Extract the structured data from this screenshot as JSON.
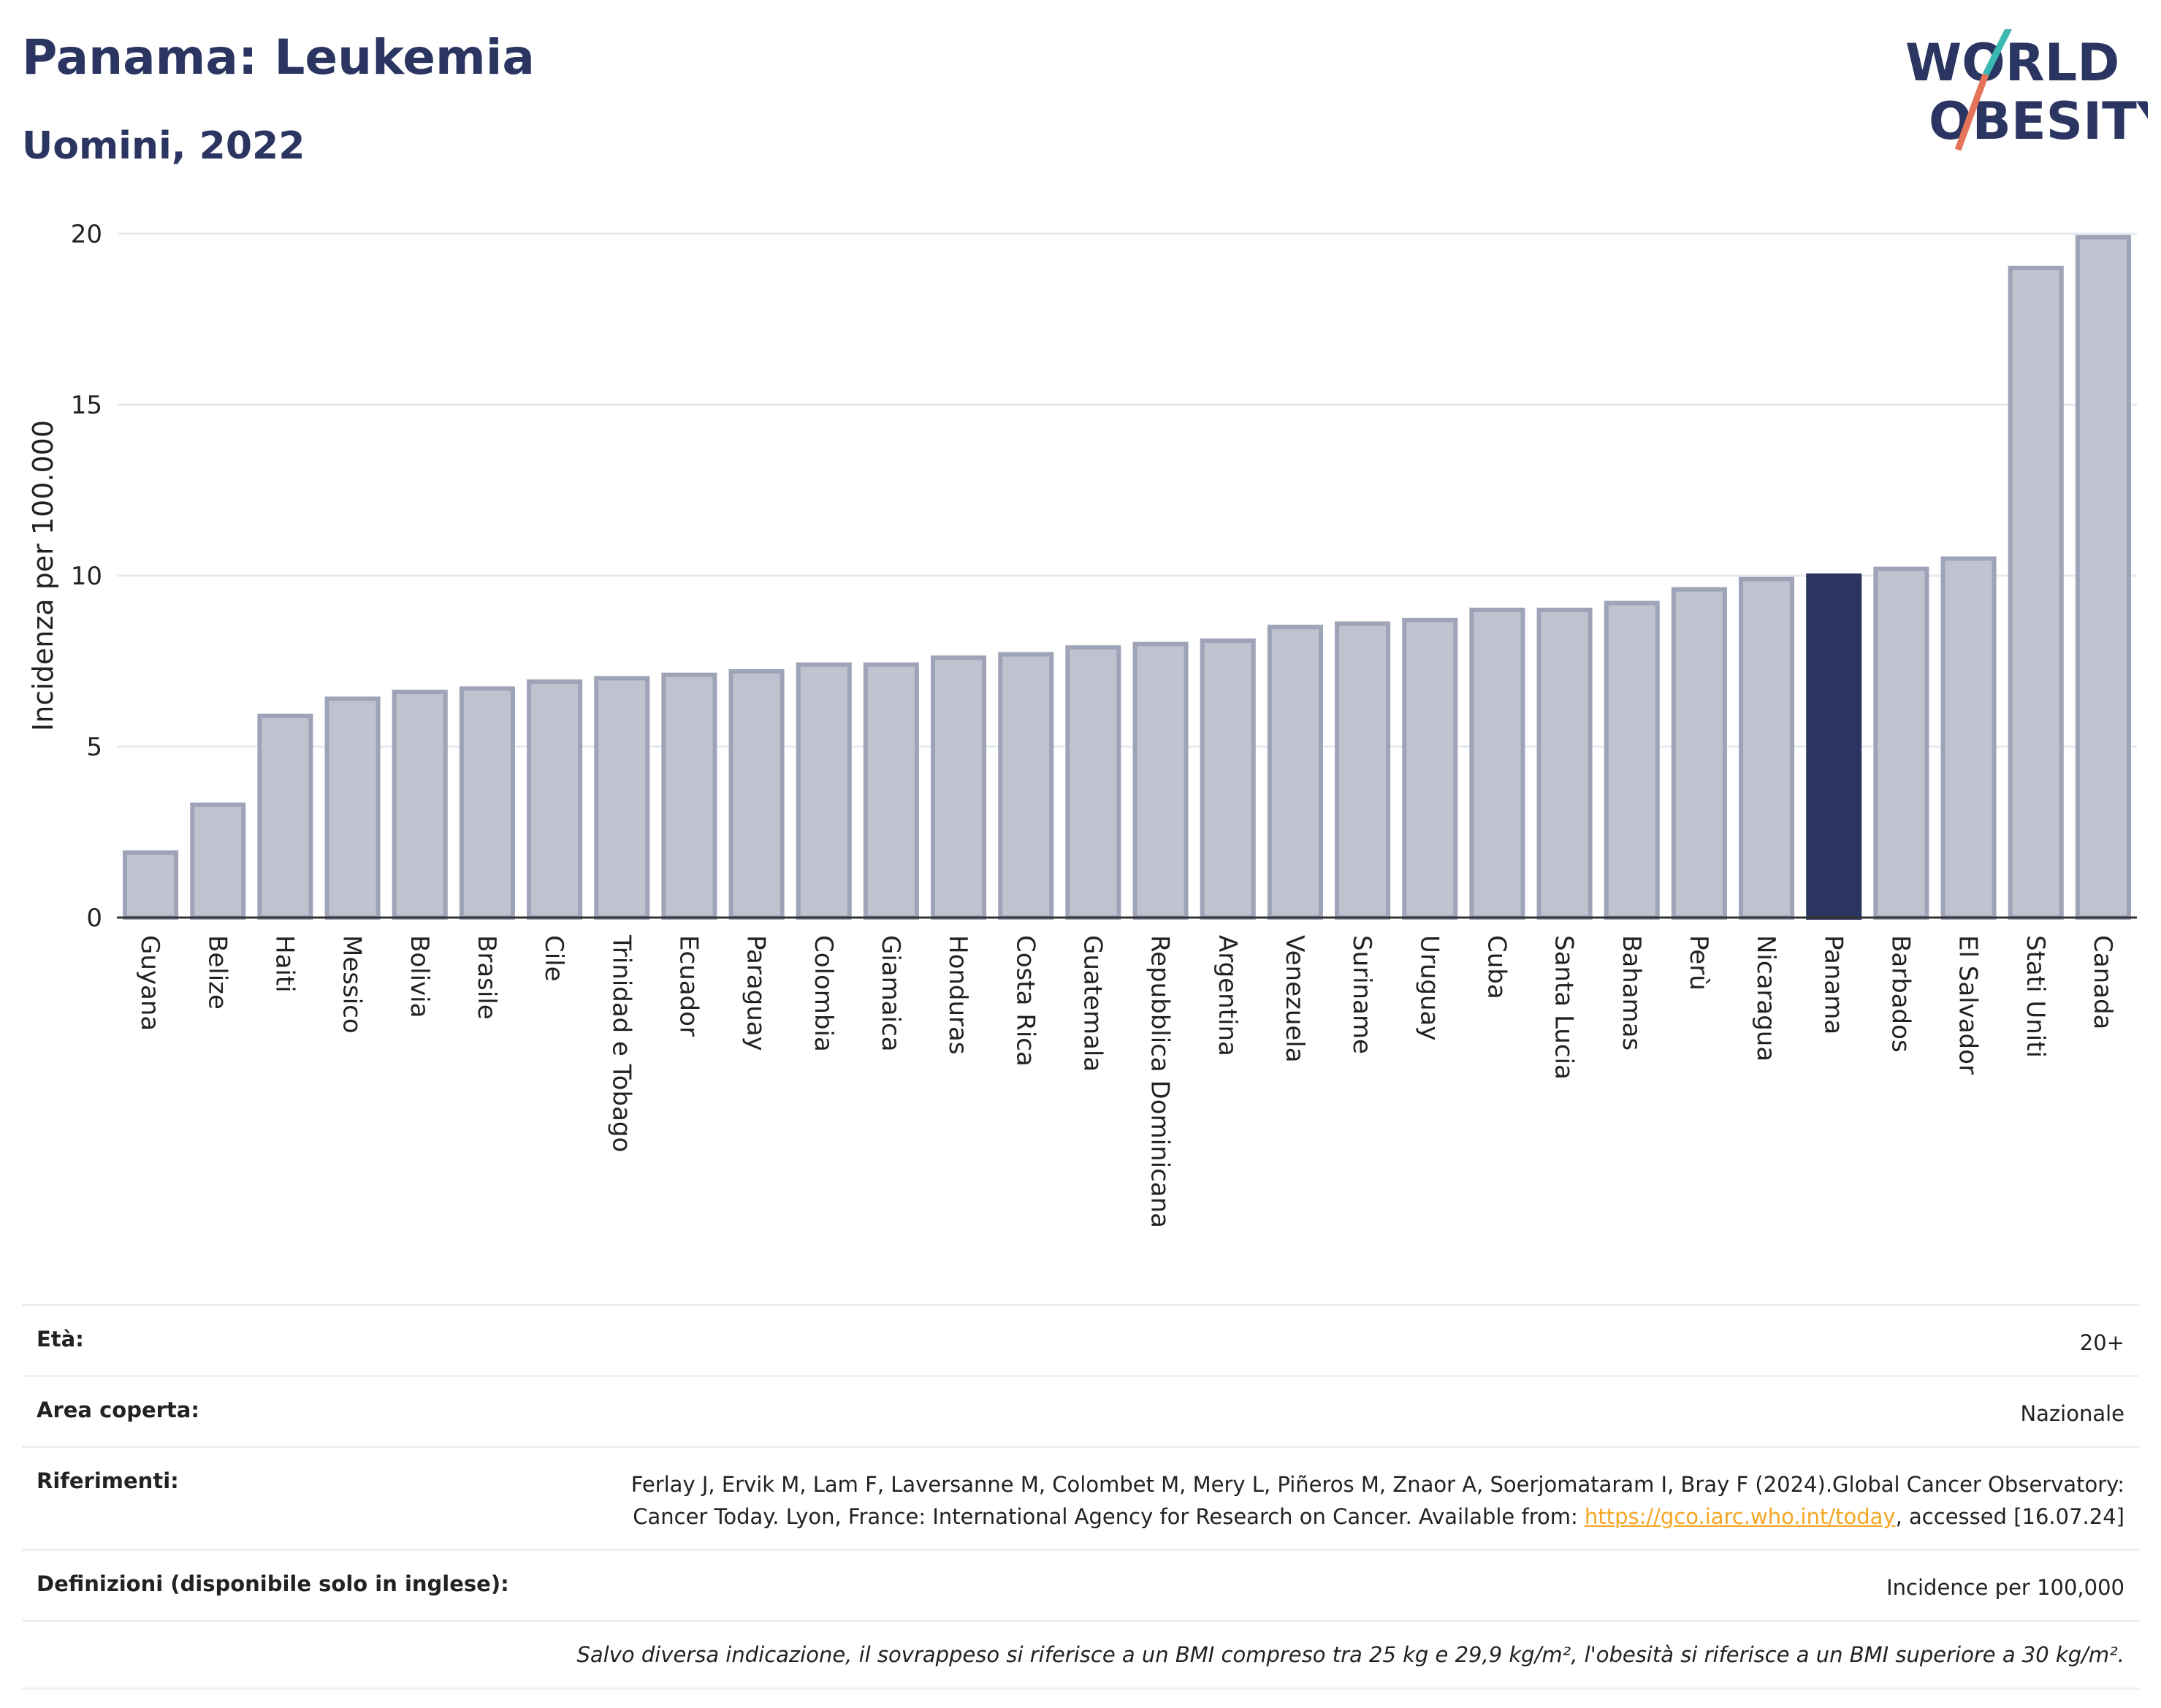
{
  "header": {
    "title": "Panama: Leukemia",
    "subtitle": "Uomini, 2022"
  },
  "logo": {
    "line1": "WORLD",
    "line2": "OBESITY"
  },
  "chart_data": {
    "type": "bar",
    "ylabel": "Incidenza per 100.000",
    "xlabel": "",
    "ylim": [
      0,
      20
    ],
    "yticks": [
      0,
      5,
      10,
      15,
      20
    ],
    "grid": true,
    "highlight": "Panama",
    "colors": {
      "bar": "#bfc2cf",
      "bar_border": "#9ea3b8",
      "highlight": "#2b3561",
      "grid": "#e7e9f0",
      "axis": "#333333"
    },
    "categories": [
      "Guyana",
      "Belize",
      "Haiti",
      "Messico",
      "Bolivia",
      "Brasile",
      "Cile",
      "Trinidad e Tobago",
      "Ecuador",
      "Paraguay",
      "Colombia",
      "Giamaica",
      "Honduras",
      "Costa Rica",
      "Guatemala",
      "Repubblica Dominicana",
      "Argentina",
      "Venezuela",
      "Suriname",
      "Uruguay",
      "Cuba",
      "Santa Lucia",
      "Bahamas",
      "Perù",
      "Nicaragua",
      "Panama",
      "Barbados",
      "El Salvador",
      "Stati Uniti",
      "Canada"
    ],
    "values": [
      1.9,
      3.3,
      5.9,
      6.4,
      6.6,
      6.7,
      6.9,
      7.0,
      7.1,
      7.2,
      7.4,
      7.4,
      7.6,
      7.7,
      7.9,
      8.0,
      8.1,
      8.5,
      8.6,
      8.7,
      9.0,
      9.0,
      9.2,
      9.6,
      9.9,
      10.0,
      10.2,
      10.5,
      19.0,
      19.9
    ]
  },
  "meta": {
    "age_label": "Età:",
    "age_value": "20+",
    "area_label": "Area coperta:",
    "area_value": "Nazionale",
    "refs_label": "Riferimenti:",
    "refs_text": "Ferlay J, Ervik M, Lam F, Laversanne M, Colombet M, Mery L, Piñeros M, Znaor A, Soerjomataram I, Bray F (2024).Global Cancer Observatory: Cancer Today. Lyon, France: International Agency for Research on Cancer. Available from: ",
    "refs_link": "https://gco.iarc.who.int/today",
    "refs_tail": ", accessed [16.07.24]",
    "defs_label": "Definizioni (disponibile solo in inglese):",
    "defs_value": "Incidence per 100,000",
    "note": "Salvo diversa indicazione, il sovrappeso si riferisce a un BMI compreso tra 25 kg e 29,9 kg/m², l'obesità si riferisce a un BMI superiore a 30 kg/m²."
  }
}
